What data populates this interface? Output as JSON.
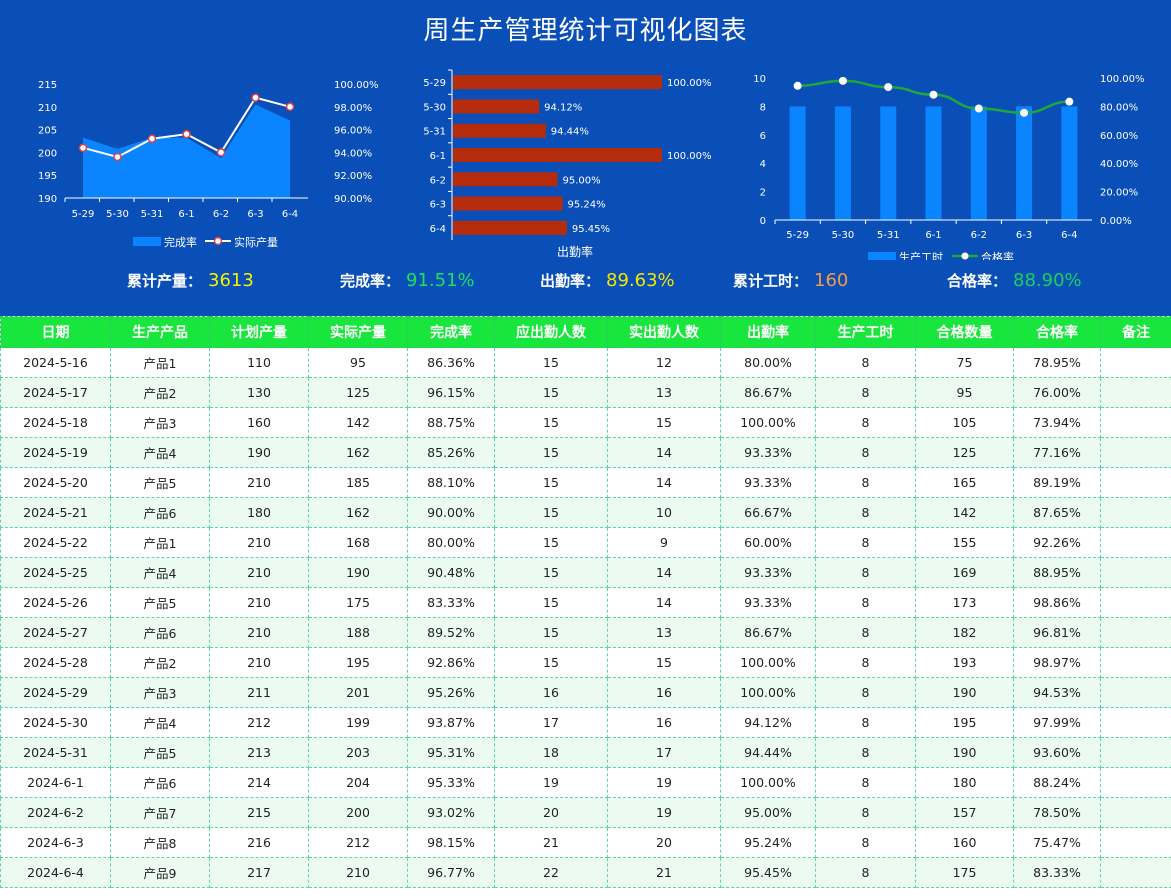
{
  "title": "周生产管理统计可视化图表",
  "colors": {
    "header_bg": "#0a4fb8",
    "table_header": "#18e63c",
    "bar_blue": "#0a84ff",
    "bar_red": "#b52c0c",
    "line_green": "#1fa83a"
  },
  "kpis": [
    {
      "label": "累计产量：",
      "value": "3613",
      "color": "#f5f200"
    },
    {
      "label": "完成率：",
      "value": "91.51%",
      "color": "#19e35a"
    },
    {
      "label": "出勤率：",
      "value": "89.63%",
      "color": "#f5e600"
    },
    {
      "label": "累计工时：",
      "value": "160",
      "color": "#f49a4a"
    },
    {
      "label": "合格率：",
      "value": "88.90%",
      "color": "#19d05a"
    }
  ],
  "chart_data": [
    {
      "type": "area",
      "categories": [
        "5-29",
        "5-30",
        "5-31",
        "6-1",
        "6-2",
        "6-3",
        "6-4"
      ],
      "series": [
        {
          "name": "完成率",
          "type": "area",
          "axis": "right",
          "values": [
            95.3,
            94.3,
            95.3,
            95.3,
            93.5,
            98.2,
            96.8
          ]
        },
        {
          "name": "实际产量",
          "type": "line",
          "axis": "left",
          "values": [
            201,
            199,
            203,
            204,
            200,
            212,
            210
          ]
        }
      ],
      "ylim": [
        190,
        215
      ],
      "yticks": [
        190,
        195,
        200,
        205,
        210,
        215
      ],
      "y2lim": [
        90,
        100
      ],
      "y2ticks": [
        "90.00%",
        "92.00%",
        "94.00%",
        "96.00%",
        "98.00%",
        "100.00%"
      ],
      "legend": "bottom"
    },
    {
      "type": "bar",
      "orientation": "horizontal",
      "categories": [
        "5-29",
        "5-30",
        "5-31",
        "6-1",
        "6-2",
        "6-3",
        "6-4"
      ],
      "values": [
        100.0,
        94.12,
        94.44,
        100.0,
        95.0,
        95.24,
        95.45
      ],
      "labels": [
        "100.00%",
        "94.12%",
        "94.44%",
        "100.00%",
        "95.00%",
        "95.24%",
        "95.45%"
      ],
      "xlim": [
        90,
        100
      ],
      "xlabel": "出勤率"
    },
    {
      "type": "bar",
      "categories": [
        "5-29",
        "5-30",
        "5-31",
        "6-1",
        "6-2",
        "6-3",
        "6-4"
      ],
      "series": [
        {
          "name": "生产工时",
          "type": "bar",
          "axis": "left",
          "values": [
            8,
            8,
            8,
            8,
            8,
            8,
            8
          ]
        },
        {
          "name": "合格率",
          "type": "line",
          "axis": "right",
          "values": [
            94.53,
            97.99,
            93.6,
            88.24,
            78.5,
            75.47,
            83.33
          ]
        }
      ],
      "ylim": [
        0,
        10
      ],
      "yticks": [
        0,
        2,
        4,
        6,
        8,
        10
      ],
      "y2lim": [
        0,
        100
      ],
      "y2ticks": [
        "0.00%",
        "20.00%",
        "40.00%",
        "60.00%",
        "80.00%",
        "100.00%"
      ],
      "legend": "bottom"
    }
  ],
  "table": {
    "headers": [
      "日期",
      "生产产品",
      "计划产量",
      "实际产量",
      "完成率",
      "应出勤人数",
      "实出勤人数",
      "出勤率",
      "生产工时",
      "合格数量",
      "合格率",
      "备注"
    ],
    "rows": [
      [
        "2024-5-16",
        "产品1",
        "110",
        "95",
        "86.36%",
        "15",
        "12",
        "80.00%",
        "8",
        "75",
        "78.95%",
        ""
      ],
      [
        "2024-5-17",
        "产品2",
        "130",
        "125",
        "96.15%",
        "15",
        "13",
        "86.67%",
        "8",
        "95",
        "76.00%",
        ""
      ],
      [
        "2024-5-18",
        "产品3",
        "160",
        "142",
        "88.75%",
        "15",
        "15",
        "100.00%",
        "8",
        "105",
        "73.94%",
        ""
      ],
      [
        "2024-5-19",
        "产品4",
        "190",
        "162",
        "85.26%",
        "15",
        "14",
        "93.33%",
        "8",
        "125",
        "77.16%",
        ""
      ],
      [
        "2024-5-20",
        "产品5",
        "210",
        "185",
        "88.10%",
        "15",
        "14",
        "93.33%",
        "8",
        "165",
        "89.19%",
        ""
      ],
      [
        "2024-5-21",
        "产品6",
        "180",
        "162",
        "90.00%",
        "15",
        "10",
        "66.67%",
        "8",
        "142",
        "87.65%",
        ""
      ],
      [
        "2024-5-22",
        "产品1",
        "210",
        "168",
        "80.00%",
        "15",
        "9",
        "60.00%",
        "8",
        "155",
        "92.26%",
        ""
      ],
      [
        "2024-5-25",
        "产品4",
        "210",
        "190",
        "90.48%",
        "15",
        "14",
        "93.33%",
        "8",
        "169",
        "88.95%",
        ""
      ],
      [
        "2024-5-26",
        "产品5",
        "210",
        "175",
        "83.33%",
        "15",
        "14",
        "93.33%",
        "8",
        "173",
        "98.86%",
        ""
      ],
      [
        "2024-5-27",
        "产品6",
        "210",
        "188",
        "89.52%",
        "15",
        "13",
        "86.67%",
        "8",
        "182",
        "96.81%",
        ""
      ],
      [
        "2024-5-28",
        "产品2",
        "210",
        "195",
        "92.86%",
        "15",
        "15",
        "100.00%",
        "8",
        "193",
        "98.97%",
        ""
      ],
      [
        "2024-5-29",
        "产品3",
        "211",
        "201",
        "95.26%",
        "16",
        "16",
        "100.00%",
        "8",
        "190",
        "94.53%",
        ""
      ],
      [
        "2024-5-30",
        "产品4",
        "212",
        "199",
        "93.87%",
        "17",
        "16",
        "94.12%",
        "8",
        "195",
        "97.99%",
        ""
      ],
      [
        "2024-5-31",
        "产品5",
        "213",
        "203",
        "95.31%",
        "18",
        "17",
        "94.44%",
        "8",
        "190",
        "93.60%",
        ""
      ],
      [
        "2024-6-1",
        "产品6",
        "214",
        "204",
        "95.33%",
        "19",
        "19",
        "100.00%",
        "8",
        "180",
        "88.24%",
        ""
      ],
      [
        "2024-6-2",
        "产品7",
        "215",
        "200",
        "93.02%",
        "20",
        "19",
        "95.00%",
        "8",
        "157",
        "78.50%",
        ""
      ],
      [
        "2024-6-3",
        "产品8",
        "216",
        "212",
        "98.15%",
        "21",
        "20",
        "95.24%",
        "8",
        "160",
        "75.47%",
        ""
      ],
      [
        "2024-6-4",
        "产品9",
        "217",
        "210",
        "96.77%",
        "22",
        "21",
        "95.45%",
        "8",
        "175",
        "83.33%",
        ""
      ]
    ]
  }
}
